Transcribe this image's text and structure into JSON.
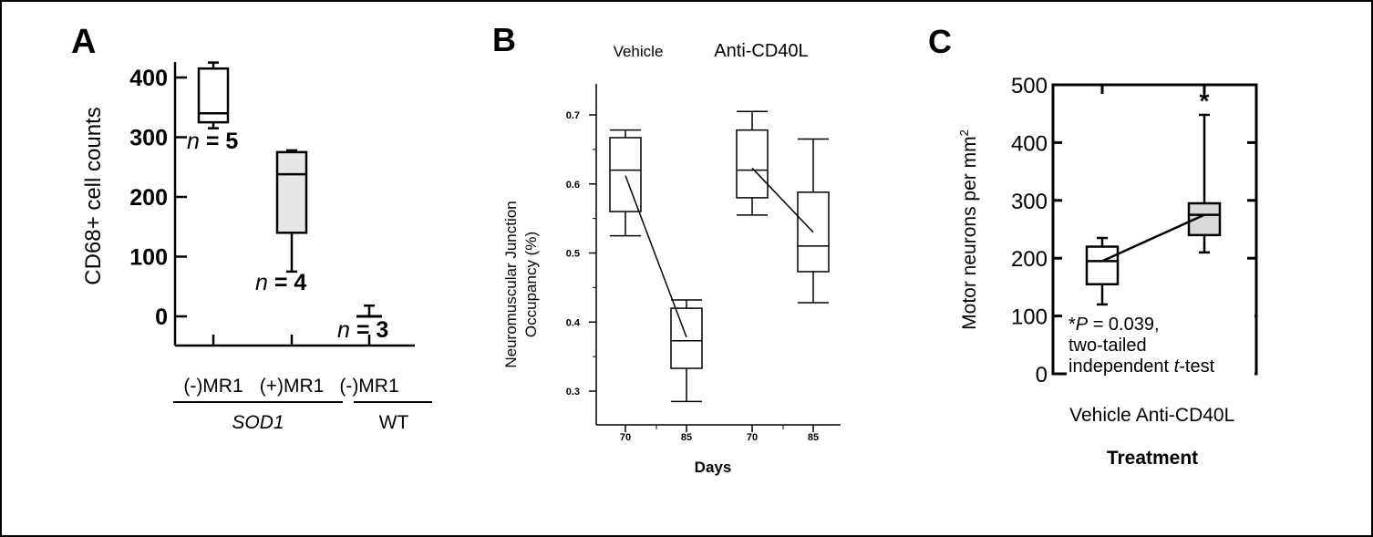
{
  "chart_data": [
    {
      "panel_label": "A",
      "type": "box",
      "ylabel": "CD68+ cell counts",
      "ylim": [
        -50,
        420
      ],
      "yticks": [
        0,
        100,
        200,
        300,
        400
      ],
      "groups": [
        {
          "label": "(-)MR1",
          "n_prefix": "n",
          "n_suffix": " = 5",
          "min": 315,
          "q1": 325,
          "median": 340,
          "q3": 415,
          "max": 425,
          "fill": "#ffffff"
        },
        {
          "label": "(+)MR1",
          "n_prefix": "n",
          "n_suffix": " = 4",
          "min": 75,
          "q1": 140,
          "median": 238,
          "q3": 275,
          "max": 278,
          "fill": "#e6e6e6"
        },
        {
          "label": "(-)MR1",
          "n_prefix": "n",
          "n_suffix": " = 3",
          "min": 0,
          "q1": 0,
          "median": 0,
          "q3": 0,
          "max": 18,
          "fill": "#ffffff"
        }
      ],
      "group_labels": [
        "SOD1",
        "WT"
      ]
    },
    {
      "panel_label": "B",
      "type": "box",
      "title_left": "Vehicle",
      "title_right": "Anti-CD40L",
      "ylabel_line1": "Neuromuscular Junction",
      "ylabel_line2": "Occupancy (%)",
      "xlabel": "Days",
      "ylim": [
        0.265,
        0.745
      ],
      "yticks": [
        "0.3",
        "0.4",
        "0.5",
        "0.6",
        "0.7"
      ],
      "boxes": [
        {
          "label": "70",
          "min": 0.525,
          "q1": 0.56,
          "median": 0.62,
          "q3": 0.667,
          "max": 0.678
        },
        {
          "label": "85",
          "min": 0.285,
          "q1": 0.333,
          "median": 0.373,
          "q3": 0.42,
          "max": 0.432
        },
        {
          "label": "70",
          "min": 0.555,
          "q1": 0.58,
          "median": 0.62,
          "q3": 0.678,
          "max": 0.705
        },
        {
          "label": "85",
          "min": 0.428,
          "q1": 0.473,
          "median": 0.51,
          "q3": 0.588,
          "max": 0.665
        }
      ],
      "trend_lines": [
        {
          "from": 0.612,
          "to": 0.378
        },
        {
          "from": 0.623,
          "to": 0.53
        }
      ]
    },
    {
      "panel_label": "C",
      "type": "box",
      "ylabel": "Motor neurons per mm",
      "ylabel_sup": "2",
      "xlabel": "Treatment",
      "ylim": [
        0,
        500
      ],
      "yticks": [
        0,
        100,
        200,
        300,
        400,
        500
      ],
      "categories": [
        "Vehicle",
        "Anti-CD40L"
      ],
      "boxes": [
        {
          "label": "Vehicle",
          "min": 120,
          "q1": 155,
          "median": 195,
          "q3": 220,
          "max": 235,
          "fill": "#ffffff"
        },
        {
          "label": "Anti-CD40L",
          "min": 210,
          "q1": 240,
          "median": 275,
          "q3": 295,
          "max": 448,
          "fill": "#d9d9d9"
        }
      ],
      "significance_marker": "*",
      "note_line1_star": "*",
      "note_line1_p": "P",
      "note_line1_rest": " = 0.039,",
      "note_line2": "two-tailed",
      "note_line3_pre": "independent ",
      "note_line3_t": "t",
      "note_line3_post": "-test"
    }
  ]
}
